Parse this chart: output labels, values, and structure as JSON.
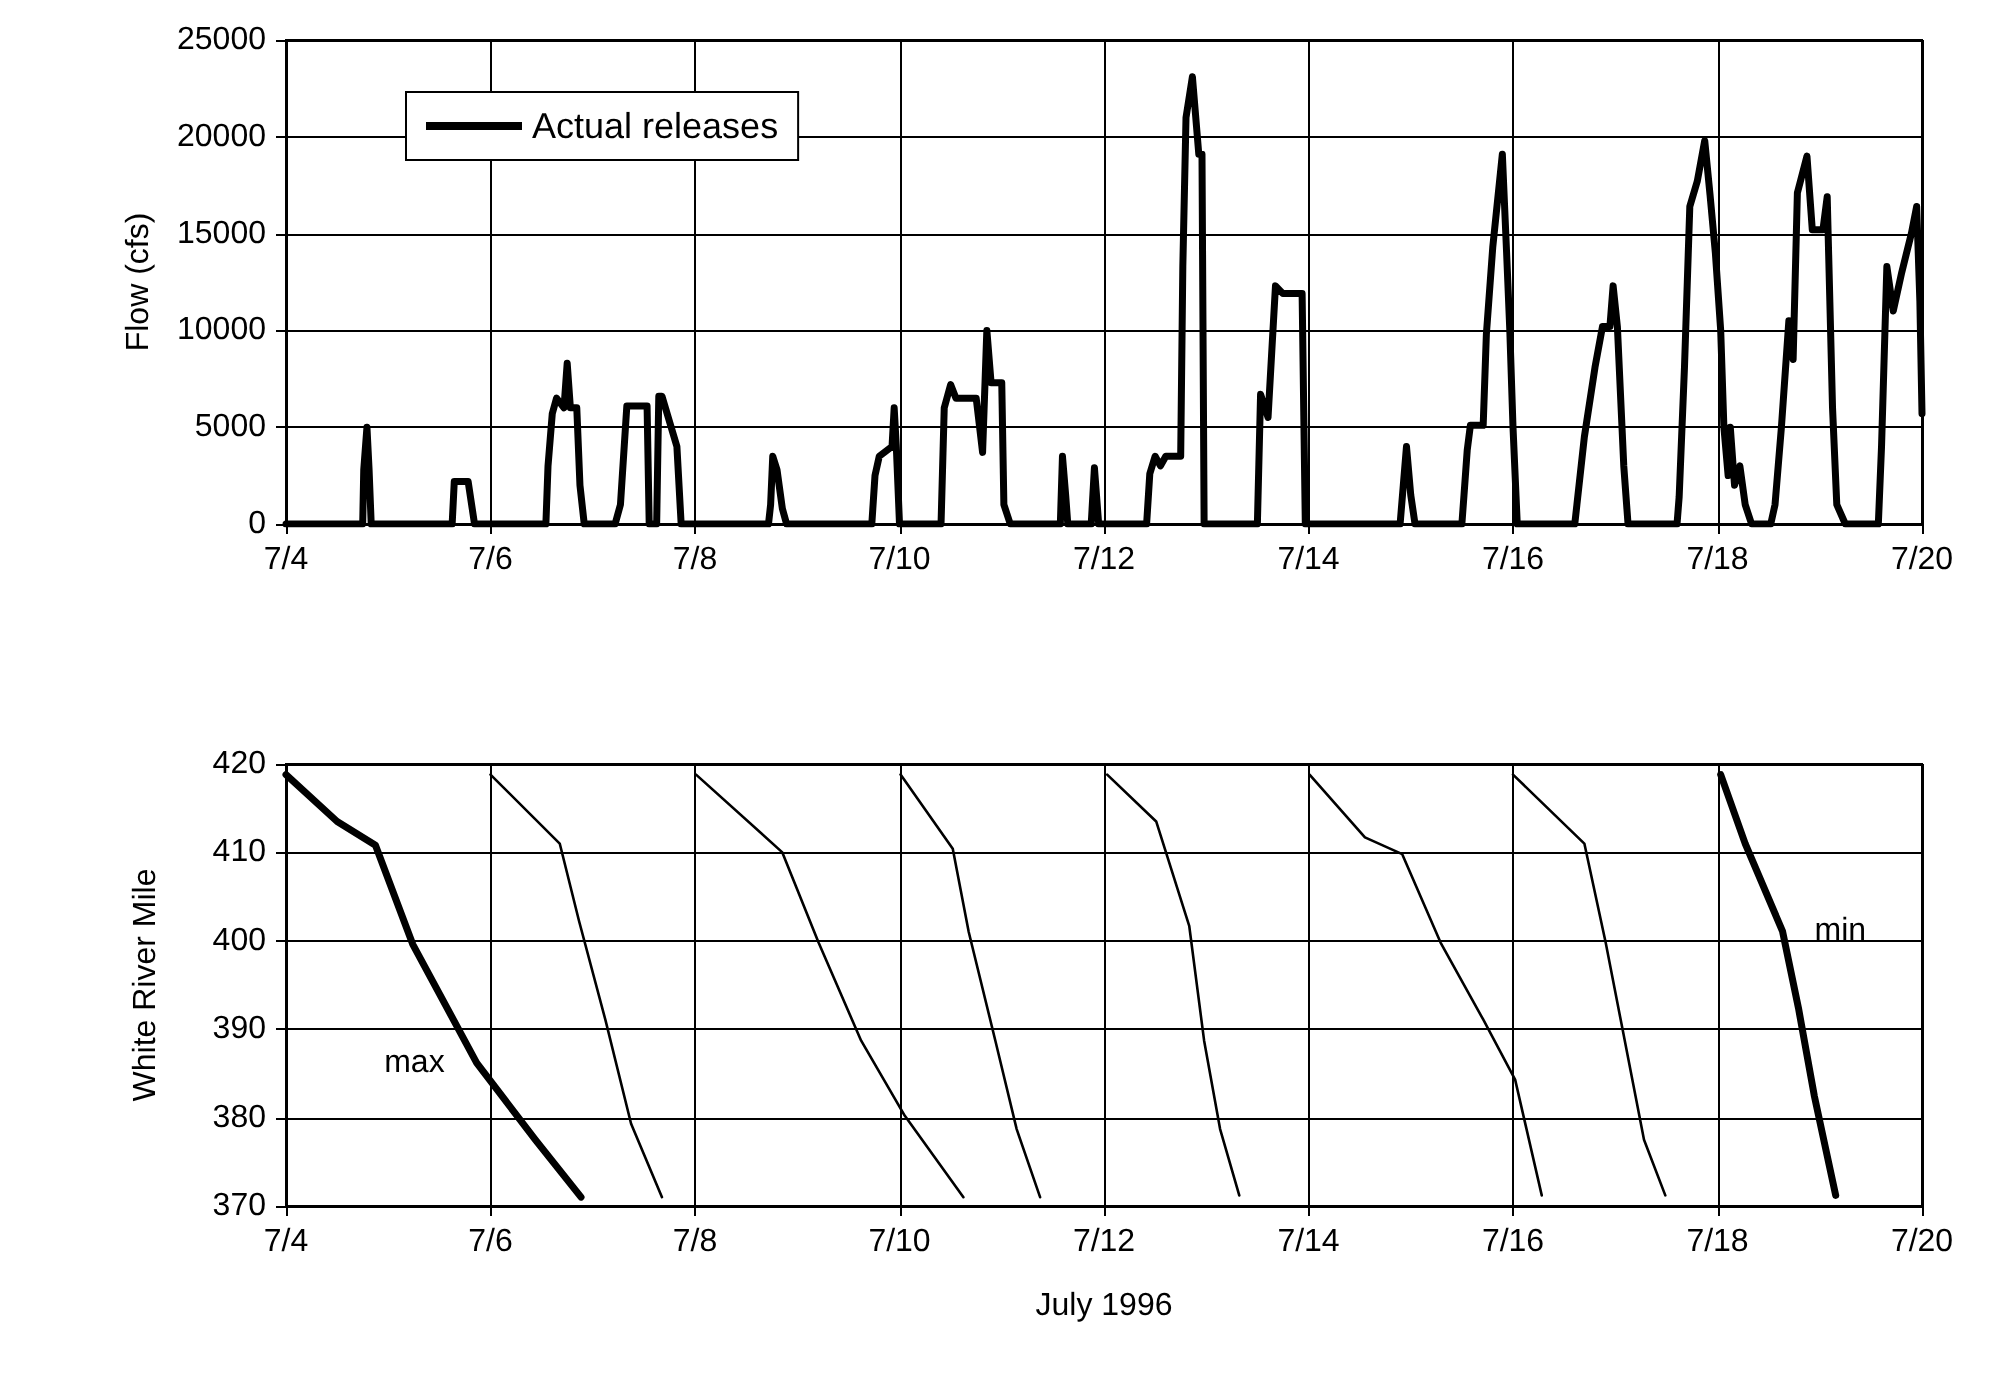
{
  "chart_data": [
    {
      "type": "line",
      "ylabel": "Flow (cfs)",
      "legend": "top left",
      "grid": true,
      "marker": "none",
      "line_style": "solid",
      "xlim": [
        "1996-07-04",
        "1996-07-20"
      ],
      "xticks": [
        {
          "value": "1996-07-04",
          "label": "7/4"
        },
        {
          "value": "1996-07-06",
          "label": "7/6"
        },
        {
          "value": "1996-07-08",
          "label": "7/8"
        },
        {
          "value": "1996-07-10",
          "label": "7/10"
        },
        {
          "value": "1996-07-12",
          "label": "7/12"
        },
        {
          "value": "1996-07-14",
          "label": "7/14"
        },
        {
          "value": "1996-07-16",
          "label": "7/16"
        },
        {
          "value": "1996-07-18",
          "label": "7/18"
        },
        {
          "value": "1996-07-20",
          "label": "7/20"
        }
      ],
      "ylim": [
        0,
        25000
      ],
      "yticks": [
        0,
        5000,
        10000,
        15000,
        20000,
        25000
      ],
      "series": [
        {
          "name": "Actual releases",
          "color": "#000000",
          "x": [
            "1996-07-04T00:00",
            "1996-07-04T18:00",
            "1996-07-04T18:15",
            "1996-07-04T19:00",
            "1996-07-04T19:30",
            "1996-07-04T20:00",
            "1996-07-05T15:00",
            "1996-07-05T15:30",
            "1996-07-05T18:45",
            "1996-07-05T20:15",
            "1996-07-06T13:00",
            "1996-07-06T13:30",
            "1996-07-06T14:30",
            "1996-07-06T15:30",
            "1996-07-06T17:15",
            "1996-07-06T18:00",
            "1996-07-06T18:45",
            "1996-07-06T20:15",
            "1996-07-06T21:00",
            "1996-07-06T22:00",
            "1996-07-07T05:15",
            "1996-07-07T06:30",
            "1996-07-07T08:00",
            "1996-07-07T12:45",
            "1996-07-07T13:15",
            "1996-07-07T15:00",
            "1996-07-07T15:30",
            "1996-07-07T16:15",
            "1996-07-07T19:45",
            "1996-07-07T20:45",
            "1996-07-08T17:15",
            "1996-07-08T17:45",
            "1996-07-08T18:15",
            "1996-07-08T19:15",
            "1996-07-08T20:30",
            "1996-07-08T21:30",
            "1996-07-09T17:30",
            "1996-07-09T18:15",
            "1996-07-09T19:15",
            "1996-07-09T22:15",
            "1996-07-09T22:45",
            "1996-07-09T23:15",
            "1996-07-10T00:00",
            "1996-07-10T09:45",
            "1996-07-10T10:30",
            "1996-07-10T12:00",
            "1996-07-10T13:15",
            "1996-07-10T18:00",
            "1996-07-10T19:30",
            "1996-07-10T20:30",
            "1996-07-10T21:30",
            "1996-07-11T00:00",
            "1996-07-11T00:30",
            "1996-07-11T02:00",
            "1996-07-11T13:45",
            "1996-07-11T14:15",
            "1996-07-11T15:00",
            "1996-07-11T15:30",
            "1996-07-11T21:00",
            "1996-07-11T21:45",
            "1996-07-11T22:45",
            "1996-07-12T10:00",
            "1996-07-12T10:45",
            "1996-07-12T12:00",
            "1996-07-12T13:15",
            "1996-07-12T14:30",
            "1996-07-12T18:00",
            "1996-07-12T18:30",
            "1996-07-12T19:15",
            "1996-07-12T20:45",
            "1996-07-12T22:15",
            "1996-07-12T23:00",
            "1996-07-12T23:30",
            "1996-07-13T12:00",
            "1996-07-13T12:45",
            "1996-07-13T14:30",
            "1996-07-13T16:15",
            "1996-07-13T18:00",
            "1996-07-13T22:30",
            "1996-07-13T23:15",
            "1996-07-14T21:30",
            "1996-07-14T22:15",
            "1996-07-14T23:00",
            "1996-07-15T00:00",
            "1996-07-15T01:00",
            "1996-07-15T12:00",
            "1996-07-15T12:30",
            "1996-07-15T13:15",
            "1996-07-15T14:00",
            "1996-07-15T17:00",
            "1996-07-15T17:45",
            "1996-07-15T19:15",
            "1996-07-15T21:30",
            "1996-07-15T22:30",
            "1996-07-15T23:15",
            "1996-07-16T00:00",
            "1996-07-16T01:00",
            "1996-07-16T14:30",
            "1996-07-16T15:00",
            "1996-07-16T16:45",
            "1996-07-16T19:15",
            "1996-07-16T21:00",
            "1996-07-16T22:45",
            "1996-07-16T23:30",
            "1996-07-17T00:30",
            "1996-07-17T02:00",
            "1996-07-17T03:00",
            "1996-07-17T14:30",
            "1996-07-17T15:00",
            "1996-07-17T16:15",
            "1996-07-17T17:30",
            "1996-07-17T19:15",
            "1996-07-17T21:00",
            "1996-07-17T22:15",
            "1996-07-17T23:30",
            "1996-07-18T00:45",
            "1996-07-18T01:30",
            "1996-07-18T02:30",
            "1996-07-18T03:00",
            "1996-07-18T04:00",
            "1996-07-18T05:15",
            "1996-07-18T06:30",
            "1996-07-18T08:00",
            "1996-07-18T12:30",
            "1996-07-18T13:30",
            "1996-07-18T15:00",
            "1996-07-18T16:45",
            "1996-07-18T17:45",
            "1996-07-18T18:45",
            "1996-07-18T21:00",
            "1996-07-18T22:15",
            "1996-07-19T00:45",
            "1996-07-19T01:45",
            "1996-07-19T03:00",
            "1996-07-19T04:00",
            "1996-07-19T06:00",
            "1996-07-19T13:45",
            "1996-07-19T14:30",
            "1996-07-19T15:45",
            "1996-07-19T17:15",
            "1996-07-19T19:15",
            "1996-07-19T21:30",
            "1996-07-19T22:45",
            "1996-07-19T23:30",
            "1996-07-20T00:00"
          ],
          "values": [
            0,
            0,
            2800,
            5000,
            2800,
            0,
            0,
            2200,
            2200,
            0,
            0,
            3000,
            5700,
            6500,
            6000,
            8300,
            6000,
            6000,
            2000,
            0,
            0,
            1000,
            6100,
            6100,
            0,
            0,
            6600,
            6600,
            4000,
            0,
            0,
            1000,
            3500,
            2800,
            800,
            0,
            0,
            2500,
            3500,
            4000,
            6000,
            4000,
            0,
            0,
            6000,
            7200,
            6500,
            6500,
            3700,
            10000,
            7300,
            7300,
            1000,
            0,
            0,
            3500,
            1500,
            0,
            0,
            2900,
            0,
            0,
            2600,
            3500,
            3000,
            3500,
            3500,
            13300,
            21000,
            23100,
            19100,
            19100,
            0,
            0,
            6700,
            5500,
            12300,
            11900,
            11900,
            0,
            0,
            2000,
            4000,
            1500,
            0,
            0,
            1500,
            3800,
            5100,
            5100,
            9800,
            14300,
            19100,
            14000,
            10000,
            5000,
            0,
            0,
            1000,
            4500,
            8100,
            10200,
            10200,
            12300,
            10200,
            3000,
            0,
            0,
            1400,
            8100,
            16400,
            17700,
            19800,
            17000,
            14000,
            10000,
            5000,
            2500,
            5000,
            2000,
            3000,
            1000,
            0,
            0,
            1000,
            5000,
            10500,
            8500,
            17100,
            19000,
            15200,
            15200,
            16900,
            6000,
            1000,
            0,
            0,
            4000,
            13300,
            11000,
            13000,
            15000,
            16400,
            11500,
            5700
          ]
        }
      ]
    },
    {
      "type": "line",
      "ylabel": "White River Mile",
      "xlabel": "July 1996",
      "grid": true,
      "marker": "none",
      "line_style": "solid",
      "xlim": [
        "1996-07-04",
        "1996-07-20"
      ],
      "xticks": [
        {
          "value": "1996-07-04",
          "label": "7/4"
        },
        {
          "value": "1996-07-06",
          "label": "7/6"
        },
        {
          "value": "1996-07-08",
          "label": "7/8"
        },
        {
          "value": "1996-07-10",
          "label": "7/10"
        },
        {
          "value": "1996-07-12",
          "label": "7/12"
        },
        {
          "value": "1996-07-14",
          "label": "7/14"
        },
        {
          "value": "1996-07-16",
          "label": "7/16"
        },
        {
          "value": "1996-07-18",
          "label": "7/18"
        },
        {
          "value": "1996-07-20",
          "label": "7/20"
        }
      ],
      "ylim": [
        370,
        420
      ],
      "yticks": [
        370,
        380,
        390,
        400,
        410,
        420
      ],
      "series": [
        {
          "name": "max",
          "color": "#000000",
          "x": [
            "1996-07-04T00:00",
            "1996-07-04T12:00",
            "1996-07-04T21:00",
            "1996-07-05T05:45",
            "1996-07-05T20:45",
            "1996-07-06T10:30",
            "1996-07-06T21:15"
          ],
          "values": [
            418.8,
            413.5,
            410.8,
            399.6,
            386.2,
            377.5,
            371
          ]
        },
        {
          "color": "#000000",
          "x": [
            "1996-07-06T00:00",
            "1996-07-06T16:15",
            "1996-07-06T20:45",
            "1996-07-07T03:00",
            "1996-07-07T09:00",
            "1996-07-07T16:15"
          ],
          "values": [
            418.8,
            411,
            402.3,
            391,
            379.3,
            371
          ]
        },
        {
          "color": "#000000",
          "x": [
            "1996-07-08T00:15",
            "1996-07-08T20:30",
            "1996-07-09T05:00",
            "1996-07-09T15:00",
            "1996-07-10T01:15",
            "1996-07-10T15:00"
          ],
          "values": [
            418.8,
            410,
            399.8,
            388.7,
            380.2,
            371
          ]
        },
        {
          "color": "#000000",
          "x": [
            "1996-07-10T00:15",
            "1996-07-10T12:30",
            "1996-07-10T16:15",
            "1996-07-10T22:30",
            "1996-07-11T03:30",
            "1996-07-11T09:00"
          ],
          "values": [
            418.8,
            410.4,
            401,
            388.7,
            378.7,
            371
          ]
        },
        {
          "color": "#000000",
          "x": [
            "1996-07-12T00:45",
            "1996-07-12T12:15",
            "1996-07-12T20:00",
            "1996-07-12T23:30",
            "1996-07-13T03:15",
            "1996-07-13T07:45"
          ],
          "values": [
            418.8,
            413.5,
            401.7,
            388.7,
            378.7,
            371.2
          ]
        },
        {
          "color": "#000000",
          "x": [
            "1996-07-14T00:15",
            "1996-07-14T13:15",
            "1996-07-14T22:00",
            "1996-07-15T07:00",
            "1996-07-15T17:00",
            "1996-07-16T00:30",
            "1996-07-16T06:45"
          ],
          "values": [
            418.8,
            411.7,
            409.8,
            399.8,
            391.1,
            384.3,
            371.2
          ]
        },
        {
          "color": "#000000",
          "x": [
            "1996-07-16T00:00",
            "1996-07-16T16:45",
            "1996-07-16T21:45",
            "1996-07-17T01:45",
            "1996-07-17T06:45",
            "1996-07-17T11:45"
          ],
          "values": [
            418.8,
            411,
            399.8,
            389.9,
            377.5,
            371.2
          ]
        },
        {
          "name": "min",
          "color": "#000000",
          "x": [
            "1996-07-18T00:45",
            "1996-07-18T06:30",
            "1996-07-18T15:15",
            "1996-07-18T19:00",
            "1996-07-18T22:45",
            "1996-07-19T03:45"
          ],
          "values": [
            418.8,
            411,
            401.1,
            392.4,
            382.4,
            371.2
          ]
        }
      ]
    }
  ]
}
